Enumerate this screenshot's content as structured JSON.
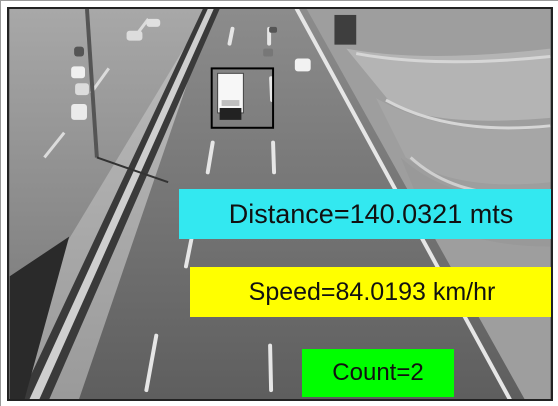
{
  "overlays": {
    "distance": {
      "text": "Distance=140.0321 mts",
      "color": "#33e8f0"
    },
    "speed": {
      "text": "Speed=84.0193 km/hr",
      "color": "#ffff00"
    },
    "count": {
      "text": "Count=2",
      "color": "#00ff00"
    }
  },
  "detection": {
    "box_color": "#000000",
    "vehicle": "truck"
  },
  "scene": {
    "description_icon": "highway-camera-view"
  }
}
